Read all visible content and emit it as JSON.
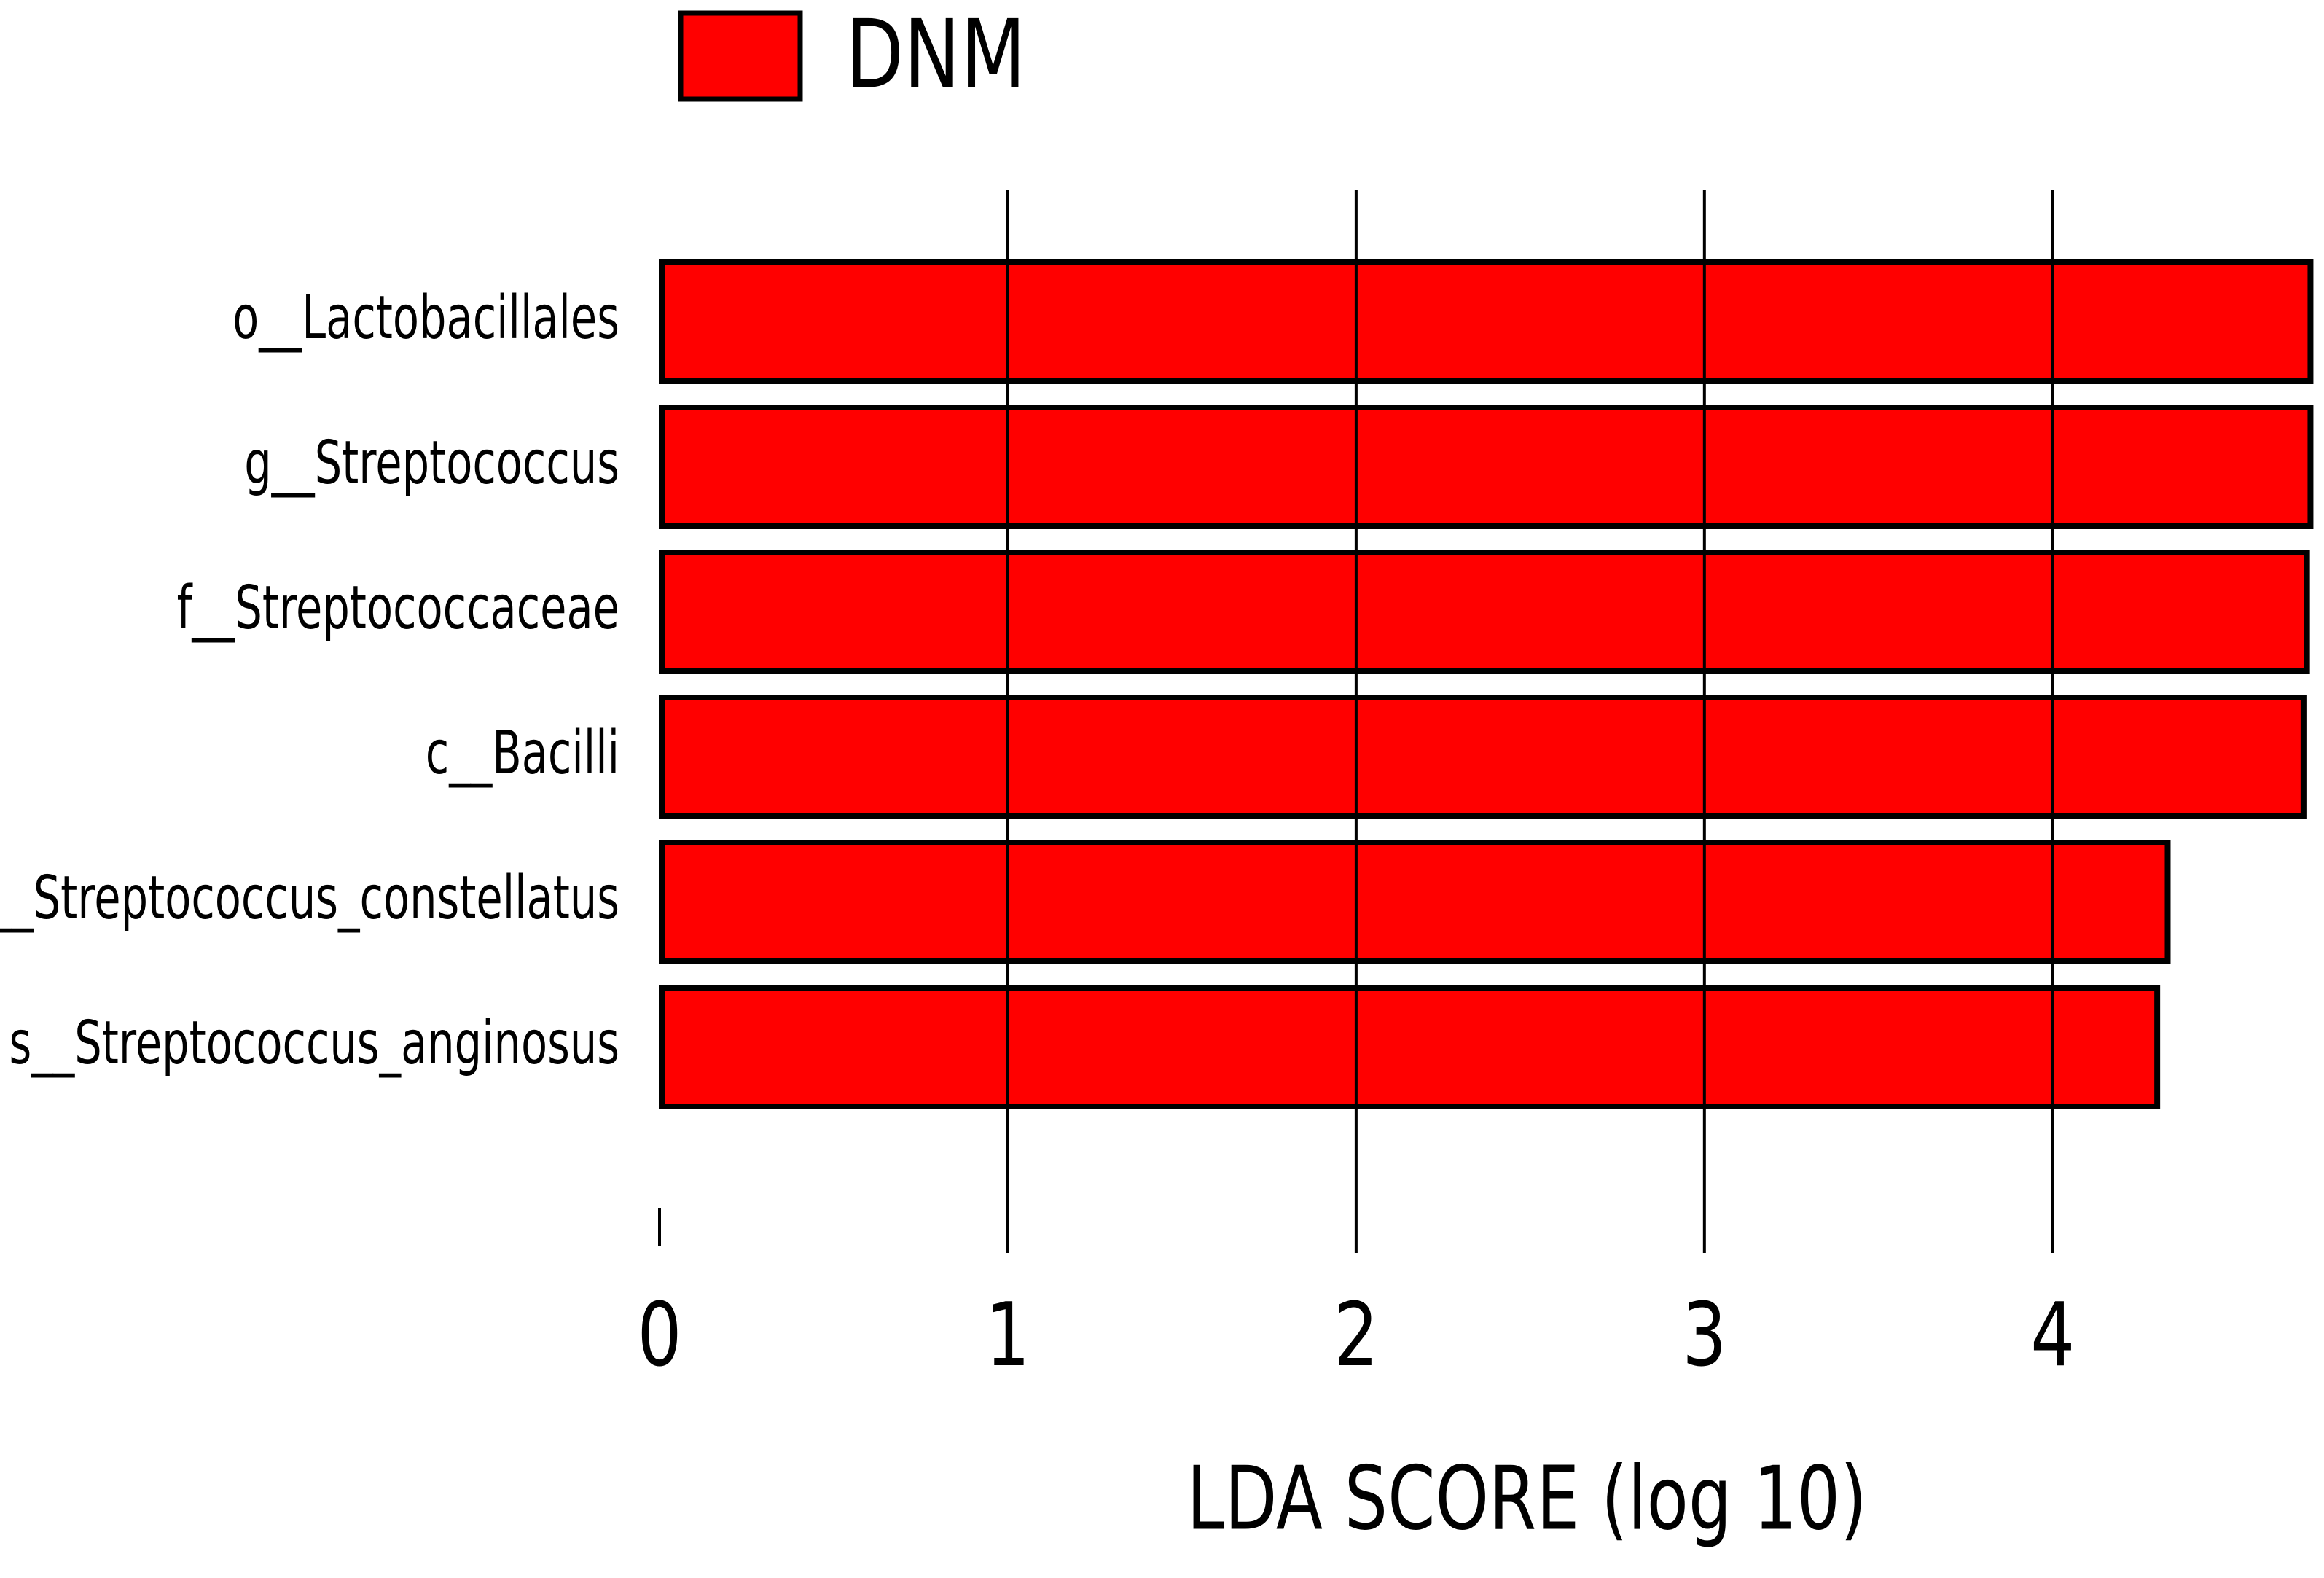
{
  "chart_data": {
    "type": "barh",
    "xlabel": "LDA SCORE (log 10)",
    "categories": [
      "o__Lactobacillales",
      "g__Streptococcus",
      "f__Streptococcaceae",
      "c__Bacilli",
      "s__Streptococcus_constellatus",
      "s__Streptococcus_anginosus"
    ],
    "series": [
      {
        "name": "DNM",
        "color": "#ff0000",
        "values": [
          4.74,
          4.74,
          4.73,
          4.72,
          4.33,
          4.3
        ]
      }
    ],
    "xlim": [
      0,
      4.76
    ],
    "xticks": [
      0,
      1,
      2,
      3,
      4
    ],
    "grid": true,
    "legend": "top"
  }
}
